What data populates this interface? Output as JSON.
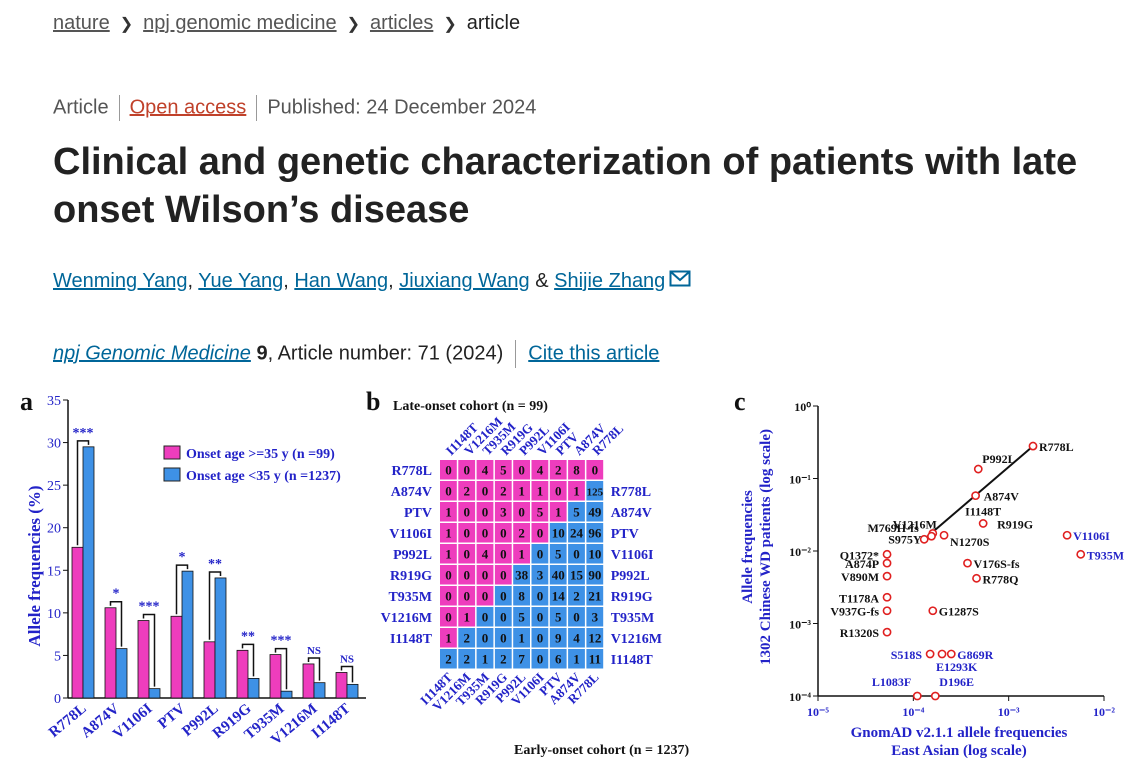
{
  "breadcrumb": {
    "items": [
      "nature",
      "npj genomic medicine",
      "articles"
    ],
    "current": "article"
  },
  "meta": {
    "type": "Article",
    "access": "Open access",
    "published": "Published: 24 December 2024"
  },
  "title": "Clinical and genetic characterization of patients with late onset Wilson’s disease",
  "authors": {
    "list": [
      "Wenming Yang",
      "Yue Yang",
      "Han Wang",
      "Jiuxiang Wang"
    ],
    "amp": "&",
    "last": "Shijie Zhang"
  },
  "journal": {
    "name": "npj Genomic Medicine",
    "volume": "9",
    "article": ", Article number: 71 (2024)",
    "cite": "Cite this article"
  },
  "colors": {
    "pink": "#ee3dbd",
    "blue": "#3e91e6",
    "navy": "#2323c8"
  },
  "figure": {
    "panel_a": {
      "letter": "a",
      "ylabel": "Allele frequencies (%)",
      "legend": [
        "Onset age >=35 y (n =99)",
        "Onset age <35 y (n =1237)"
      ]
    },
    "panel_b": {
      "letter": "b",
      "top_title": "Late-onset cohort (n = 99)",
      "bottom_title": "Early-onset cohort (n = 1237)"
    },
    "panel_c": {
      "letter": "c",
      "ylabel": [
        "Allele frequencies",
        "1302 Chinese WD patients (log scale)"
      ],
      "xlabel": [
        "GnomAD v2.1.1 allele frequencies",
        "East Asian (log scale)"
      ]
    }
  },
  "chart_data": [
    {
      "type": "bar",
      "panel": "a",
      "categories": [
        "R778L",
        "A874V",
        "V1106I",
        "PTV",
        "P992L",
        "R919G",
        "T935M",
        "V1216M",
        "I1148T"
      ],
      "series": [
        {
          "name": "Onset age >=35 y (n =99)",
          "values": [
            17.7,
            10.6,
            9.1,
            9.6,
            6.6,
            5.6,
            5.1,
            4.0,
            3.0
          ]
        },
        {
          "name": "Onset age <35 y (n =1237)",
          "values": [
            29.5,
            5.8,
            1.1,
            14.9,
            14.1,
            2.3,
            0.8,
            1.8,
            1.6
          ]
        }
      ],
      "significance": [
        "***",
        "*",
        "***",
        "*",
        "**",
        "**",
        "***",
        "NS",
        "NS"
      ],
      "ylabel": "Allele frequencies (%)",
      "ylim": [
        0,
        35
      ],
      "yticks": [
        0,
        5,
        10,
        15,
        20,
        25,
        30,
        35
      ]
    },
    {
      "type": "heatmap",
      "panel": "b",
      "labels": [
        "R778L",
        "A874V",
        "PTV",
        "V1106I",
        "P992L",
        "R919G",
        "T935M",
        "V1216M",
        "I1148T"
      ],
      "late": [
        [
          0,
          0,
          4,
          5,
          0,
          4,
          2,
          8,
          0
        ],
        [
          0,
          2,
          0,
          2,
          1,
          1,
          0,
          1
        ],
        [
          1,
          0,
          0,
          3,
          0,
          5,
          1
        ],
        [
          1,
          0,
          0,
          0,
          2,
          0
        ],
        [
          1,
          0,
          4,
          0,
          1
        ],
        [
          0,
          0,
          0,
          0
        ],
        [
          0,
          0,
          0
        ],
        [
          0,
          1
        ],
        [
          1
        ]
      ],
      "early": [
        [
          125
        ],
        [
          5,
          49
        ],
        [
          10,
          24,
          96
        ],
        [
          0,
          5,
          0,
          10
        ],
        [
          38,
          3,
          40,
          15,
          90
        ],
        [
          0,
          8,
          0,
          14,
          2,
          21
        ],
        [
          0,
          0,
          5,
          0,
          5,
          0,
          3
        ],
        [
          2,
          0,
          0,
          1,
          0,
          9,
          4,
          12
        ],
        [
          2,
          2,
          1,
          2,
          7,
          0,
          6,
          1,
          11
        ]
      ]
    },
    {
      "type": "scatter",
      "panel": "c",
      "xlabel": "GnomAD v2.1.1 allele frequencies East Asian (log scale)",
      "ylabel": "Allele frequencies 1302 Chinese WD patients (log scale)",
      "xlim": [
        1e-05,
        0.01
      ],
      "ylim": [
        0.0001,
        1
      ],
      "xticks": [
        "10⁻⁵",
        "10⁻⁴",
        "10⁻³",
        "10⁻²"
      ],
      "yticks": [
        "10⁻⁴",
        "10⁻³",
        "10⁻²",
        "10⁻¹",
        "10⁰"
      ],
      "points": [
        {
          "label": "R778L",
          "x": 0.0018,
          "y": 0.28
        },
        {
          "label": "P992L",
          "x": 0.00048,
          "y": 0.135
        },
        {
          "label": "A874V",
          "x": 0.00045,
          "y": 0.058
        },
        {
          "label": "V1216M",
          "x": 0.00016,
          "y": 0.0175
        },
        {
          "label": "I1148T",
          "x": 0.00054,
          "y": 0.024
        },
        {
          "label": "R919G",
          "x": 0.00054,
          "y": 0.024
        },
        {
          "label": "M769H-fs",
          "x": 0.000155,
          "y": 0.016
        },
        {
          "label": "S975Y",
          "x": 0.00013,
          "y": 0.0145
        },
        {
          "label": "N1270S",
          "x": 0.00021,
          "y": 0.0165
        },
        {
          "label": "V1106I",
          "x": 0.0041,
          "y": 0.0165
        },
        {
          "label": "T935M",
          "x": 0.0057,
          "y": 0.009
        },
        {
          "label": "Q1372*",
          "x": 5.3e-05,
          "y": 0.009
        },
        {
          "label": "A874P",
          "x": 5.3e-05,
          "y": 0.0068
        },
        {
          "label": "V176S-fs",
          "x": 0.00037,
          "y": 0.0068
        },
        {
          "label": "V890M",
          "x": 5.3e-05,
          "y": 0.0045
        },
        {
          "label": "R778Q",
          "x": 0.00046,
          "y": 0.0042
        },
        {
          "label": "T1178A",
          "x": 5.3e-05,
          "y": 0.0023
        },
        {
          "label": "V937G-fs",
          "x": 5.3e-05,
          "y": 0.0015
        },
        {
          "label": "G1287S",
          "x": 0.00016,
          "y": 0.0015
        },
        {
          "label": "R1320S",
          "x": 5.3e-05,
          "y": 0.00076
        },
        {
          "label": "S518S",
          "x": 0.00015,
          "y": 0.00038
        },
        {
          "label": "G869R",
          "x": 0.00025,
          "y": 0.00038
        },
        {
          "label": "E1293K",
          "x": 0.0002,
          "y": 0.00038
        },
        {
          "label": "L1083F",
          "x": 0.00011,
          "y": 0.0001
        },
        {
          "label": "D196E",
          "x": 0.00017,
          "y": 0.0001
        }
      ]
    }
  ]
}
